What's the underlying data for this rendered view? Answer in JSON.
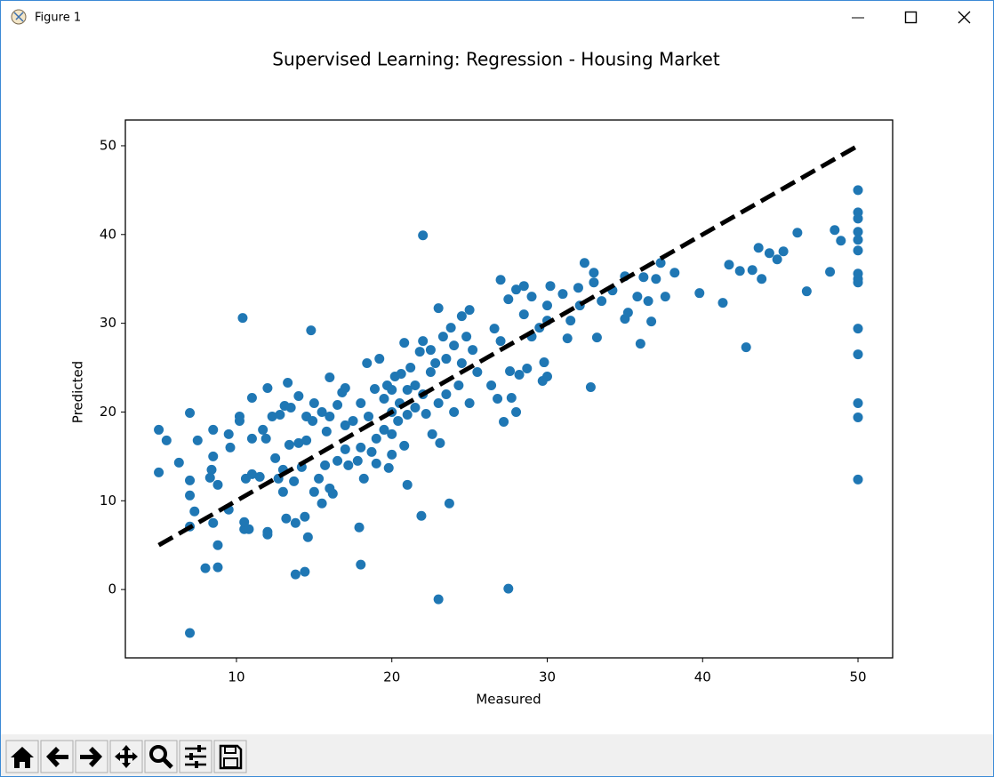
{
  "window": {
    "title": "Figure 1"
  },
  "chart_data": {
    "type": "scatter",
    "title": "Supervised Learning: Regression - Housing Market",
    "xlabel": "Measured",
    "ylabel": "Predicted",
    "xlim": [
      2.85,
      52.23
    ],
    "ylim": [
      -7.7,
      52.9
    ],
    "xticks": [
      10,
      20,
      30,
      40,
      50
    ],
    "yticks": [
      0,
      10,
      20,
      30,
      40,
      50
    ],
    "grid": false,
    "series": [
      {
        "type": "scatter",
        "color": "#1f77b4",
        "x": [
          5,
          5,
          5.5,
          6.3,
          7,
          7,
          7,
          7,
          7,
          7.3,
          7.5,
          8,
          8.3,
          8.4,
          8.5,
          8.5,
          8.5,
          8.8,
          8.8,
          8.8,
          9.5,
          9.5,
          9.6,
          10.2,
          10.2,
          10.4,
          10.5,
          10.5,
          10.6,
          10.8,
          11,
          11,
          11,
          11.5,
          11.7,
          11.9,
          12,
          12,
          12,
          12.3,
          12.5,
          12.7,
          12.8,
          13,
          13,
          13.1,
          13.2,
          13.3,
          13.4,
          13.5,
          13.7,
          13.8,
          13.8,
          14,
          14,
          14.2,
          14.4,
          14.4,
          14.5,
          14.5,
          14.6,
          14.8,
          14.9,
          15,
          15,
          15.3,
          15.5,
          15.5,
          15.7,
          15.8,
          16,
          16,
          16,
          16.2,
          16.5,
          16.5,
          16.8,
          17,
          17,
          17,
          17.2,
          17.5,
          17.8,
          17.9,
          18,
          18,
          18,
          18.2,
          18.4,
          18.5,
          18.7,
          18.9,
          19,
          19,
          19.2,
          19.5,
          19.5,
          19.7,
          19.8,
          20,
          20,
          20,
          20,
          20.2,
          20.4,
          20.5,
          20.6,
          20.8,
          20.8,
          21,
          21,
          21,
          21.2,
          21.5,
          21.5,
          21.8,
          21.9,
          22,
          22,
          22,
          22.2,
          22.5,
          22.5,
          22.6,
          22.8,
          23,
          23,
          23,
          23.1,
          23.3,
          23.5,
          23.5,
          23.7,
          23.8,
          24,
          24,
          24.3,
          24.5,
          24.5,
          24.8,
          25,
          25,
          25.2,
          25.5,
          26.4,
          26.6,
          26.8,
          27,
          27,
          27.2,
          27.5,
          27.5,
          27.6,
          27.7,
          28,
          28,
          28.2,
          28.5,
          28.5,
          28.7,
          29,
          29,
          29.5,
          29.7,
          29.8,
          30,
          30,
          30,
          30.2,
          31,
          31.3,
          31.5,
          32,
          32.1,
          32.4,
          32.8,
          33,
          33,
          33.2,
          33.5,
          34.2,
          35,
          35,
          35.2,
          35.8,
          36,
          36.2,
          36.5,
          36.7,
          37,
          37.3,
          37.6,
          38.2,
          39.8,
          41.3,
          41.7,
          42.4,
          42.8,
          43.2,
          43.6,
          43.8,
          44.3,
          44.8,
          45.2,
          46.1,
          46.7,
          48.2,
          48.5,
          48.9,
          50,
          50,
          50,
          50,
          50,
          50,
          50,
          50,
          50,
          50,
          50,
          50,
          50,
          50
        ],
        "values": [
          18,
          13.2,
          16.8,
          14.3,
          19.9,
          12.3,
          10.6,
          7.1,
          -4.9,
          8.8,
          16.8,
          2.4,
          12.6,
          13.5,
          18,
          15,
          7.5,
          5,
          2.5,
          11.8,
          17.5,
          9,
          16,
          19.5,
          19,
          30.6,
          6.8,
          7.6,
          12.5,
          6.8,
          21.6,
          17,
          13,
          12.7,
          18,
          17,
          22.7,
          6.5,
          6.2,
          19.5,
          14.8,
          12.5,
          19.7,
          11,
          13.5,
          20.7,
          8,
          23.3,
          16.3,
          20.5,
          12.2,
          7.5,
          1.7,
          21.8,
          16.5,
          13.8,
          2,
          8.2,
          19.5,
          16.8,
          5.9,
          29.2,
          19,
          21,
          11,
          12.5,
          20,
          9.7,
          14,
          17.8,
          23.9,
          19.5,
          11.4,
          10.8,
          20.8,
          14.5,
          22.2,
          22.7,
          15.8,
          18.5,
          14,
          19,
          14.5,
          7,
          2.8,
          21,
          16,
          12.5,
          25.5,
          19.5,
          15.5,
          22.6,
          17,
          14.2,
          26,
          21.5,
          18,
          23,
          13.7,
          20,
          17.5,
          22.5,
          15.2,
          24,
          19,
          21,
          24.3,
          27.8,
          16.2,
          22.5,
          11.8,
          19.7,
          25,
          23,
          20.5,
          26.8,
          8.3,
          39.9,
          28,
          22,
          19.8,
          27,
          24.5,
          17.5,
          25.5,
          31.7,
          -1.1,
          21,
          16.5,
          28.5,
          26,
          22,
          9.7,
          29.5,
          27.5,
          20,
          23,
          30.8,
          25.5,
          28.5,
          31.5,
          21,
          27,
          24.5,
          23,
          29.4,
          21.5,
          34.9,
          28,
          18.9,
          32.7,
          0.1,
          24.6,
          21.6,
          33.8,
          20,
          24.2,
          34.2,
          31,
          24.9,
          33,
          28.5,
          29.5,
          23.5,
          25.6,
          32,
          24,
          30.3,
          34.2,
          33.3,
          28.3,
          30.3,
          34,
          32,
          36.8,
          22.8,
          35.7,
          34.6,
          28.4,
          32.5,
          33.7,
          35.3,
          30.5,
          31.2,
          33,
          27.7,
          35.2,
          32.5,
          30.2,
          35,
          36.8,
          33,
          35.7,
          33.4,
          32.3,
          36.6,
          35.9,
          27.3,
          36,
          38.5,
          35,
          37.9,
          37.2,
          38.1,
          40.2,
          33.6,
          35.8,
          40.5,
          39.3,
          45,
          42.5,
          41.8,
          40.3,
          39.4,
          38.2,
          35.6,
          35,
          34.6,
          29.4,
          26.5,
          21,
          19.4,
          12.4
        ]
      },
      {
        "type": "line",
        "color": "#000000",
        "linestyle": "dashed",
        "x": [
          5,
          50
        ],
        "values": [
          5,
          50
        ]
      }
    ]
  }
}
